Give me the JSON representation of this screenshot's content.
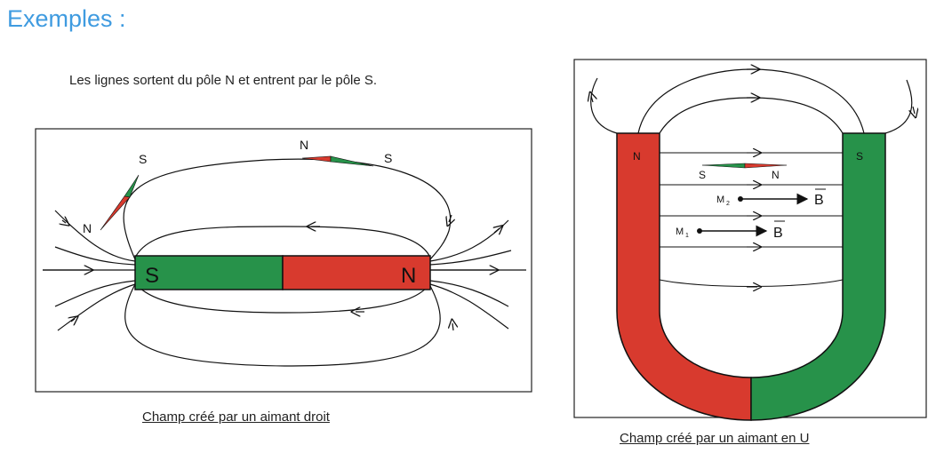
{
  "heading": "Exemples :",
  "intro": "Les lignes sortent du pôle N et entrent par le pôle S.",
  "left_figure": {
    "caption": "Champ créé par un aimant droit",
    "magnet_left_pole": "S",
    "magnet_right_pole": "N",
    "compass_1_top": "S",
    "compass_1_bottom": "N",
    "compass_2_left": "N",
    "compass_2_right": "S"
  },
  "right_figure": {
    "caption": "Champ créé par un aimant en U",
    "left_pole": "N",
    "right_pole": "S",
    "compass_left": "S",
    "compass_right": "N",
    "point_m2": "M",
    "point_m2_sub": "2",
    "point_m1": "M",
    "point_m1_sub": "1",
    "vector_label": "B"
  },
  "colors": {
    "north": "#d83a2e",
    "south": "#27924a",
    "heading": "#3f9be0"
  }
}
